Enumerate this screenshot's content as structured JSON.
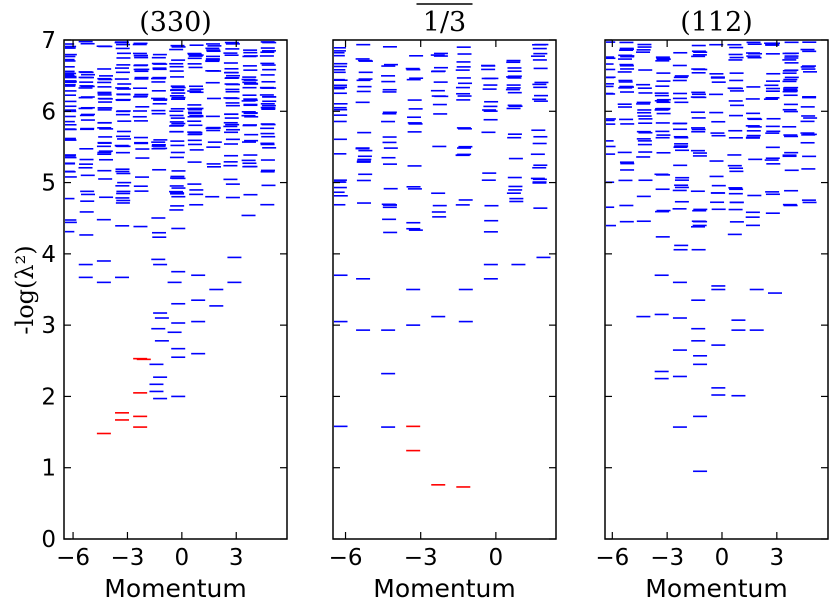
{
  "chart_data": {
    "type": "scatter",
    "mark": "horizontal-dash",
    "ylabel": "-log(λ²)",
    "shared_ylim": [
      0,
      7
    ],
    "yticks": [
      "0",
      "1",
      "2",
      "3",
      "4",
      "5",
      "6",
      "7"
    ],
    "colors": {
      "bulk": "#0000ff",
      "highlight": "#ff0000"
    },
    "panels": [
      {
        "id": "330",
        "title": "(330)",
        "title_overline": false,
        "xlabel": "Momentum",
        "xlim": [
          -6.5,
          5.8
        ],
        "xticks": [
          "−6",
          "−3",
          "0",
          "3"
        ],
        "xtick_values": [
          -6,
          -3,
          0,
          3
        ],
        "red_levels": [
          [
            -4.3,
            1.48
          ],
          [
            -3.3,
            1.67
          ],
          [
            -3.3,
            1.77
          ],
          [
            -2.3,
            1.57
          ],
          [
            -2.3,
            1.72
          ],
          [
            -2.3,
            2.05
          ],
          [
            -2.1,
            2.52
          ],
          [
            -2.3,
            2.53
          ]
        ],
        "blue_levels": [
          [
            -1.2,
            1.97
          ],
          [
            -1.4,
            2.07
          ],
          [
            -1.4,
            2.17
          ],
          [
            -1.2,
            2.27
          ],
          [
            -1.4,
            2.45
          ],
          [
            -0.2,
            2.0
          ],
          [
            -0.2,
            2.55
          ],
          [
            -0.2,
            2.67
          ],
          [
            -1.1,
            2.78
          ],
          [
            -1.3,
            2.95
          ],
          [
            -1.1,
            3.1
          ],
          [
            -1.2,
            3.17
          ],
          [
            -0.4,
            2.9
          ],
          [
            -0.2,
            3.03
          ],
          [
            -0.2,
            3.3
          ],
          [
            -0.4,
            3.6
          ],
          [
            0.9,
            2.6
          ],
          [
            0.9,
            3.05
          ],
          [
            0.9,
            3.35
          ],
          [
            1.9,
            3.27
          ],
          [
            1.9,
            3.5
          ],
          [
            -3.3,
            3.67
          ],
          [
            -4.3,
            3.6
          ],
          [
            -4.3,
            3.9
          ],
          [
            -5.3,
            3.67
          ],
          [
            -5.3,
            3.85
          ],
          [
            -1.2,
            3.85
          ],
          [
            -0.2,
            3.75
          ],
          [
            0.9,
            3.7
          ],
          [
            2.9,
            3.6
          ],
          [
            2.9,
            3.95
          ]
        ],
        "bulk": {
          "seed": 11,
          "count": 420,
          "ymin": 3.8,
          "ymax": 6.98
        }
      },
      {
        "id": "1/3",
        "title": "1/3",
        "title_overline": true,
        "xlabel": "Momentum",
        "xlim": [
          -6.5,
          2.4
        ],
        "xticks": [
          "−6",
          "−3",
          "0"
        ],
        "xtick_values": [
          -6,
          -3,
          0
        ],
        "red_levels": [
          [
            -3.3,
            1.58
          ],
          [
            -3.3,
            1.24
          ],
          [
            -2.3,
            0.76
          ],
          [
            -1.3,
            0.73
          ]
        ],
        "blue_levels": [
          [
            -6.2,
            1.58
          ],
          [
            -4.3,
            1.57
          ],
          [
            -4.3,
            2.32
          ],
          [
            -5.3,
            2.93
          ],
          [
            -4.3,
            2.93
          ],
          [
            -3.3,
            3.0
          ],
          [
            -2.3,
            3.12
          ],
          [
            -1.2,
            3.05
          ],
          [
            -6.2,
            3.05
          ],
          [
            -6.2,
            3.7
          ],
          [
            -5.3,
            3.65
          ],
          [
            -3.3,
            3.5
          ],
          [
            -1.2,
            3.5
          ],
          [
            -0.2,
            3.65
          ],
          [
            -0.2,
            3.85
          ],
          [
            0.9,
            3.85
          ],
          [
            1.9,
            3.95
          ]
        ],
        "bulk": {
          "seed": 23,
          "count": 190,
          "ymin": 3.9,
          "ymax": 6.95
        }
      },
      {
        "id": "112",
        "title": "(112)",
        "title_overline": false,
        "xlabel": "Momentum",
        "xlim": [
          -6.4,
          5.8
        ],
        "xticks": [
          "−6",
          "−3",
          "0",
          "3"
        ],
        "xtick_values": [
          -6,
          -3,
          0,
          3
        ],
        "red_levels": [],
        "blue_levels": [
          [
            -1.2,
            0.95
          ],
          [
            -1.2,
            1.72
          ],
          [
            -2.3,
            1.57
          ],
          [
            -3.3,
            2.25
          ],
          [
            -3.3,
            2.35
          ],
          [
            -2.3,
            2.28
          ],
          [
            -0.2,
            2.02
          ],
          [
            -0.2,
            2.12
          ],
          [
            0.9,
            2.01
          ],
          [
            -1.2,
            2.45
          ],
          [
            -1.2,
            2.57
          ],
          [
            -2.3,
            2.65
          ],
          [
            -1.3,
            2.78
          ],
          [
            -0.2,
            2.72
          ],
          [
            -1.3,
            2.95
          ],
          [
            0.9,
            2.93
          ],
          [
            0.9,
            3.07
          ],
          [
            1.9,
            2.93
          ],
          [
            -2.3,
            3.1
          ],
          [
            -4.3,
            3.12
          ],
          [
            -3.3,
            3.15
          ],
          [
            -0.2,
            3.5
          ],
          [
            -0.2,
            3.55
          ],
          [
            1.9,
            3.5
          ],
          [
            -1.3,
            3.35
          ],
          [
            -3.3,
            3.7
          ],
          [
            -2.3,
            3.6
          ],
          [
            2.9,
            3.45
          ]
        ],
        "bulk": {
          "seed": 37,
          "count": 300,
          "ymin": 3.75,
          "ymax": 6.98
        }
      }
    ]
  }
}
